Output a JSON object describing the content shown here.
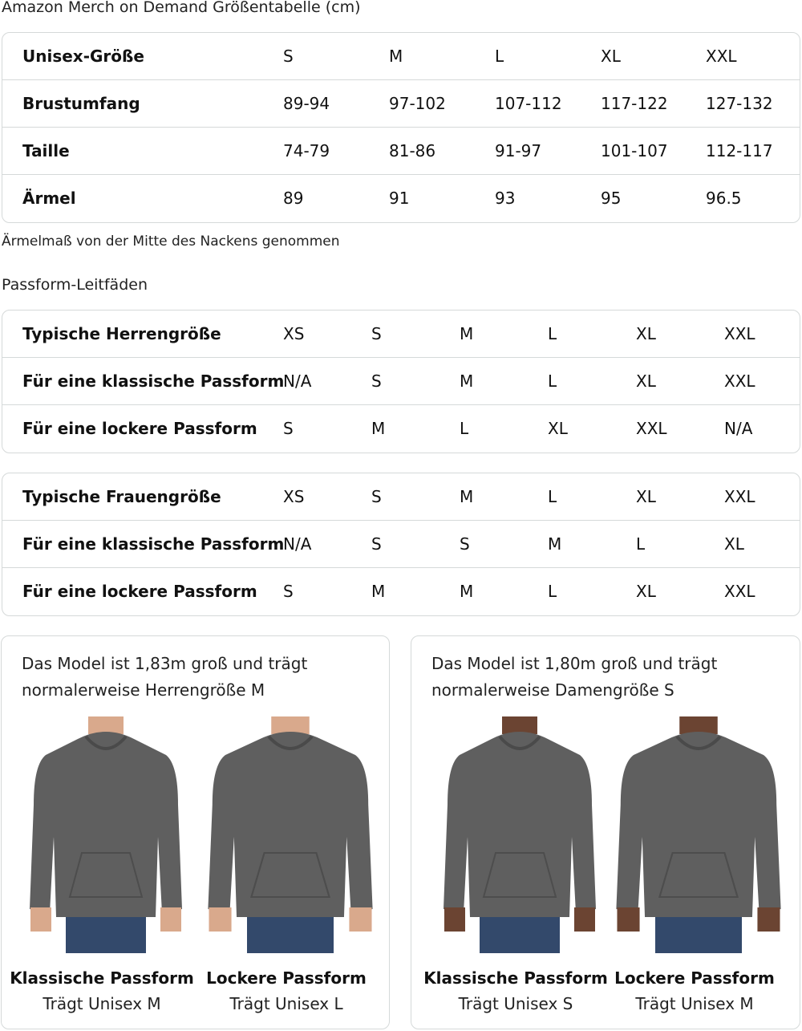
{
  "title": "Amazon Merch on Demand Größentabelle (cm)",
  "size_table": {
    "rows": [
      [
        "Unisex-Größe",
        "S",
        "M",
        "L",
        "XL",
        "XXL"
      ],
      [
        "Brustumfang",
        "89-94",
        "97-102",
        "107-112",
        "117-122",
        "127-132"
      ],
      [
        "Taille",
        "74-79",
        "81-86",
        "91-97",
        "101-107",
        "112-117"
      ],
      [
        "Ärmel",
        "89",
        "91",
        "93",
        "95",
        "96.5"
      ]
    ]
  },
  "sleeve_note": "Ärmelmaß von der Mitte des Nackens genommen",
  "fit_heading": "Passform-Leitfäden",
  "men_table": {
    "rows": [
      [
        "Typische Herrengröße",
        "XS",
        "S",
        "M",
        "L",
        "XL",
        "XXL"
      ],
      [
        "Für eine klassische Passform",
        "N/A",
        "S",
        "M",
        "L",
        "XL",
        "XXL"
      ],
      [
        "Für eine lockere Passform",
        "S",
        "M",
        "L",
        "XL",
        "XXL",
        "N/A"
      ]
    ]
  },
  "women_table": {
    "rows": [
      [
        "Typische Frauengröße",
        "XS",
        "S",
        "M",
        "L",
        "XL",
        "XXL"
      ],
      [
        "Für eine klassische Passform",
        "N/A",
        "S",
        "S",
        "M",
        "L",
        "XL"
      ],
      [
        "Für eine lockere Passform",
        "S",
        "M",
        "M",
        "L",
        "XL",
        "XXL"
      ]
    ]
  },
  "cards": [
    {
      "caption": "Das Model ist 1,83m groß und trägt normalerweise Herrengröße M",
      "figures": [
        {
          "fit": "Klassische Passform",
          "wears": "Trägt Unisex M"
        },
        {
          "fit": "Lockere Passform",
          "wears": "Trägt Unisex L"
        }
      ]
    },
    {
      "caption": "Das Model ist 1,80m groß und trägt normalerweise Damengröße S",
      "figures": [
        {
          "fit": "Klassische Passform",
          "wears": "Trägt Unisex S"
        },
        {
          "fit": "Lockere Passform",
          "wears": "Trägt Unisex M"
        }
      ]
    }
  ],
  "colors": {
    "hoodie": "#5f5f5f",
    "jeans": "#33496b",
    "border": "#d5d9d9"
  }
}
